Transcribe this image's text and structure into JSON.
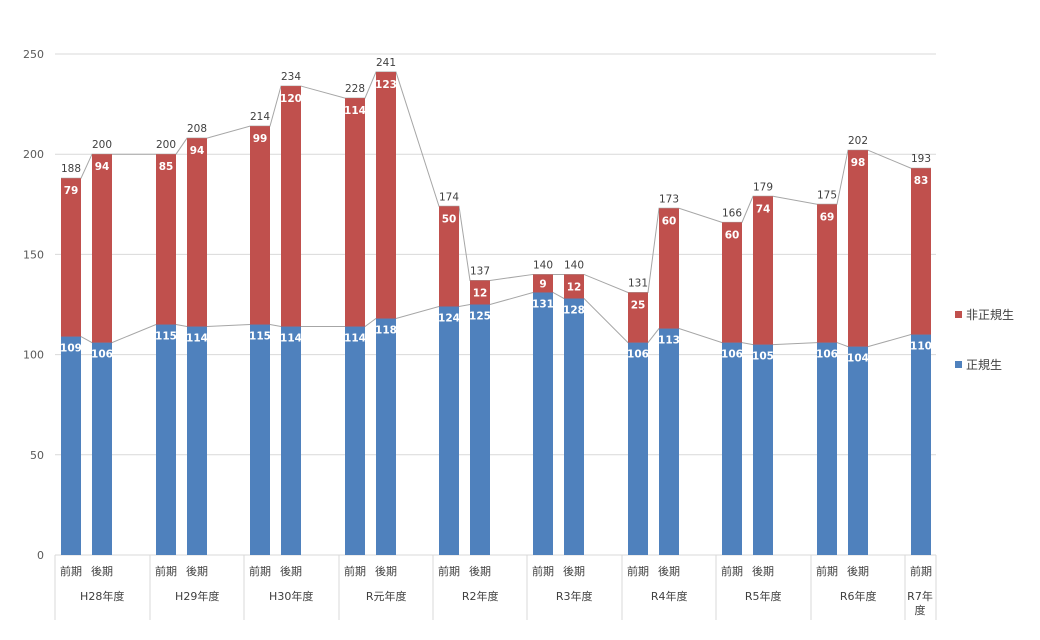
{
  "chart_data": {
    "type": "stacked-bar",
    "ylim": [
      0,
      250
    ],
    "yticks": [
      0,
      50,
      100,
      150,
      200,
      250
    ],
    "grid": true,
    "legend_position": "right",
    "groups": [
      {
        "label": "H28年度",
        "periods": [
          "前期",
          "後期"
        ]
      },
      {
        "label": "H29年度",
        "periods": [
          "前期",
          "後期"
        ]
      },
      {
        "label": "H30年度",
        "periods": [
          "前期",
          "後期"
        ]
      },
      {
        "label": "R元年度",
        "periods": [
          "前期",
          "後期"
        ]
      },
      {
        "label": "R2年度",
        "periods": [
          "前期",
          "後期"
        ]
      },
      {
        "label": "R3年度",
        "periods": [
          "前期",
          "後期"
        ]
      },
      {
        "label": "R4年度",
        "periods": [
          "前期",
          "後期"
        ]
      },
      {
        "label": "R5年度",
        "periods": [
          "前期",
          "後期"
        ]
      },
      {
        "label": "R6年度",
        "periods": [
          "前期",
          "後期"
        ]
      },
      {
        "label": "R7年\n度",
        "periods": [
          "前期"
        ]
      }
    ],
    "series": [
      {
        "name": "正規生",
        "color": "#4f81bd",
        "values": [
          109,
          106,
          115,
          114,
          115,
          114,
          114,
          118,
          124,
          125,
          131,
          128,
          106,
          113,
          106,
          105,
          106,
          104,
          110
        ]
      },
      {
        "name": "非正規生",
        "color": "#c0504d",
        "values": [
          79,
          94,
          85,
          94,
          99,
          120,
          114,
          123,
          50,
          12,
          9,
          12,
          25,
          60,
          60,
          74,
          69,
          98,
          83
        ]
      }
    ],
    "totals": [
      188,
      200,
      200,
      208,
      214,
      234,
      228,
      241,
      174,
      137,
      140,
      140,
      131,
      173,
      166,
      179,
      175,
      202,
      193
    ]
  }
}
